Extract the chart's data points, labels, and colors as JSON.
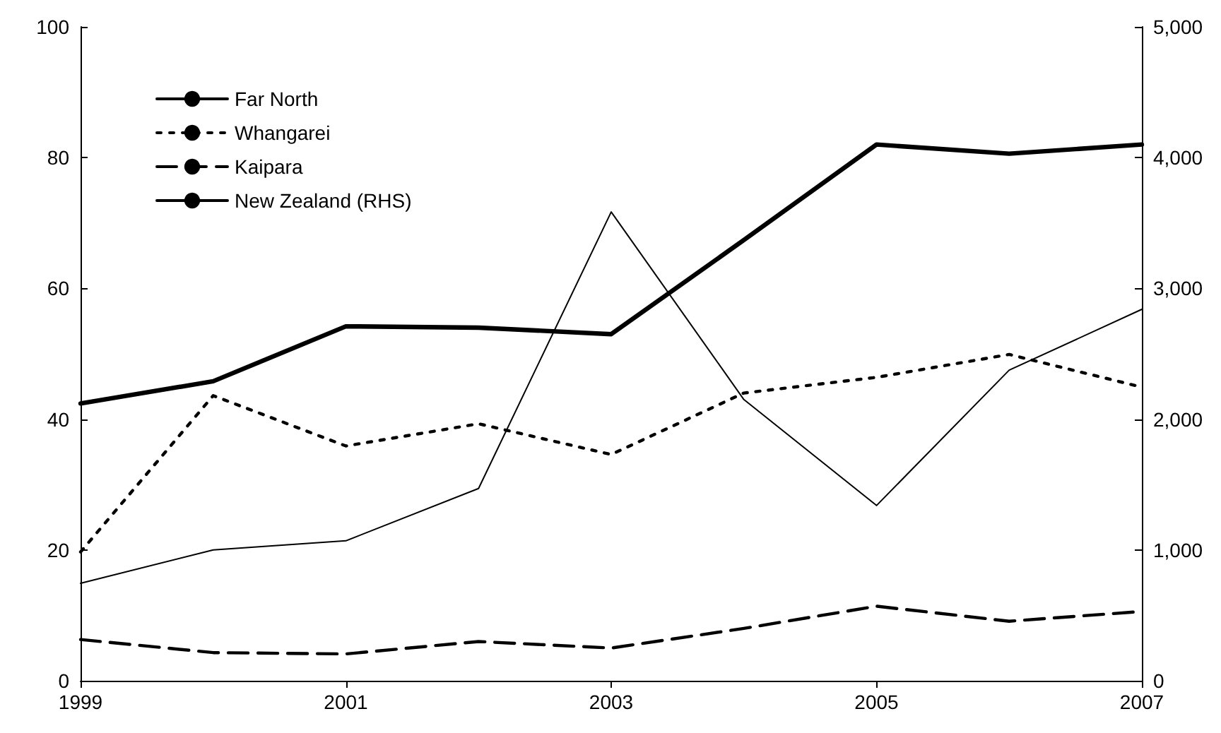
{
  "chart_data": {
    "type": "line",
    "x": [
      1999,
      2000,
      2001,
      2002,
      2003,
      2004,
      2005,
      2006,
      2007
    ],
    "series": [
      {
        "name": "Far North",
        "color": "#000000",
        "line_style": "solid",
        "values": [
          14.9,
          20,
          21.4,
          29.4,
          71.7,
          43,
          26.8,
          47.5,
          56.8
        ]
      },
      {
        "name": "Whangarei",
        "color": "#000000",
        "line_style": "dotted",
        "values": [
          19.7,
          43.6,
          35.9,
          39.3,
          34.6,
          44,
          46.4,
          49.9,
          44.9
        ]
      },
      {
        "name": "Kaipara",
        "color": "#000000",
        "line_style": "dashed",
        "values": [
          6.3,
          4.3,
          4.1,
          6,
          5,
          8,
          11.4,
          9.1,
          10.6
        ]
      },
      {
        "name": "New Zealand (RHS)",
        "color": "#000000",
        "line_style": "solid",
        "axis": "y2",
        "values": [
          2120,
          2290,
          2710,
          2700,
          2650,
          3370,
          4100,
          4030,
          4100
        ]
      }
    ],
    "xlim": [
      1999,
      2007
    ],
    "xticks": [
      1999,
      2001,
      2003,
      2005,
      2007
    ],
    "ylim": [
      0,
      100
    ],
    "yticks": [
      0,
      20,
      40,
      60,
      80,
      100
    ],
    "y2lim": [
      0,
      5000
    ],
    "y2ticks": [
      0,
      {
        "value": 1000,
        "label": "1,000"
      },
      {
        "value": 2000,
        "label": "2,000"
      },
      {
        "value": 3000,
        "label": "3,000"
      },
      {
        "value": 4000,
        "label": "4,000"
      },
      {
        "value": 5000,
        "label": "5,000"
      }
    ],
    "grid": false,
    "legend": "top left",
    "marker": "none"
  }
}
